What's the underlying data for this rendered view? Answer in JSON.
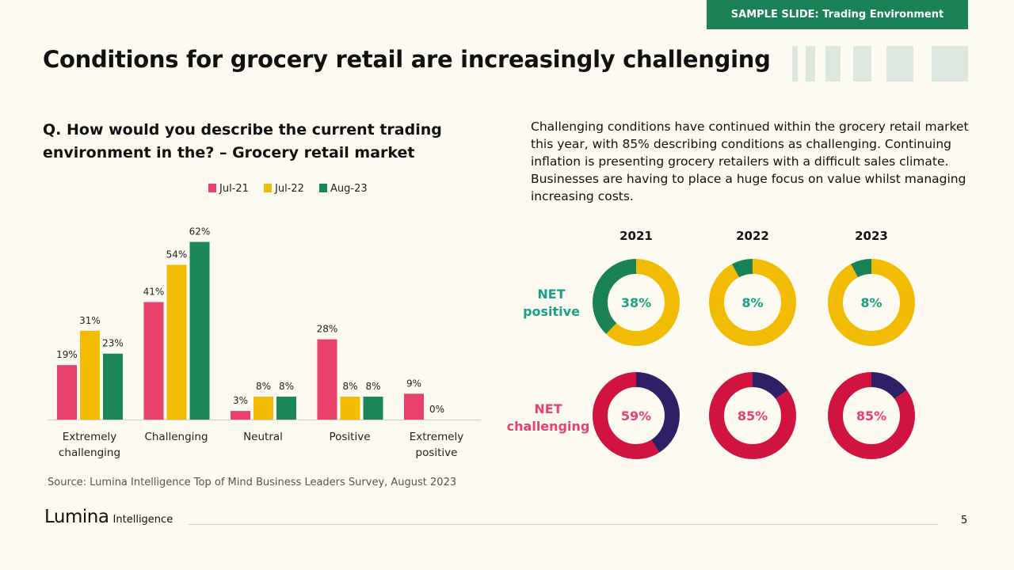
{
  "tag": "SAMPLE SLIDE: Trading Environment",
  "title": "Conditions for grocery retail are increasingly challenging",
  "question": "Q. How would you describe the current trading environment in the? – Grocery  retail market",
  "description": "Challenging conditions have continued within the grocery retail market this year, with 85% describing conditions as challenging. Continuing inflation is presenting grocery retailers with a difficult sales climate. Businesses are having to place a huge focus on value whilst managing increasing costs.",
  "source": "Source: Lumina Intelligence Top of Mind Business Leaders Survey, August 2023",
  "logo": {
    "main": "Lumina",
    "sub": "Intelligence"
  },
  "page_number": "5",
  "colors": {
    "jul21": "#e8416b",
    "jul22": "#f2bc05",
    "aug23": "#1b8759",
    "positive": "#1b9f86",
    "challenging_label": "#e8416b",
    "challenging": "#d0133f",
    "other": "#2e1f66",
    "donut_yellow": "#f2bc05",
    "donut_green": "#1b8257"
  },
  "chart_data": [
    {
      "type": "bar",
      "categories": [
        "Extremely challenging",
        "Challenging",
        "Neutral",
        "Positive",
        "Extremely positive"
      ],
      "series": [
        {
          "name": "Jul-21",
          "values": [
            19,
            41,
            3,
            28,
            9
          ]
        },
        {
          "name": "Jul-22",
          "values": [
            31,
            54,
            8,
            8,
            0
          ]
        },
        {
          "name": "Aug-23",
          "values": [
            23,
            62,
            8,
            8,
            null
          ]
        }
      ],
      "labels": [
        [
          "19%",
          "41%",
          "3%",
          "28%",
          "9%"
        ],
        [
          "31%",
          "54%",
          "8%",
          "8%",
          "0%"
        ],
        [
          "23%",
          "62%",
          "8%",
          "8%",
          ""
        ]
      ],
      "ylim": [
        0,
        65
      ],
      "legend": "top"
    },
    {
      "type": "pie",
      "variant": "donut",
      "years": [
        "2021",
        "2022",
        "2023"
      ],
      "rows": [
        {
          "label": "NET positive",
          "values": [
            38,
            8,
            8
          ],
          "display": [
            "38%",
            "8%",
            "8%"
          ]
        },
        {
          "label": "NET challenging",
          "values": [
            59,
            85,
            85
          ],
          "display": [
            "59%",
            "85%",
            "85%"
          ]
        }
      ]
    }
  ]
}
